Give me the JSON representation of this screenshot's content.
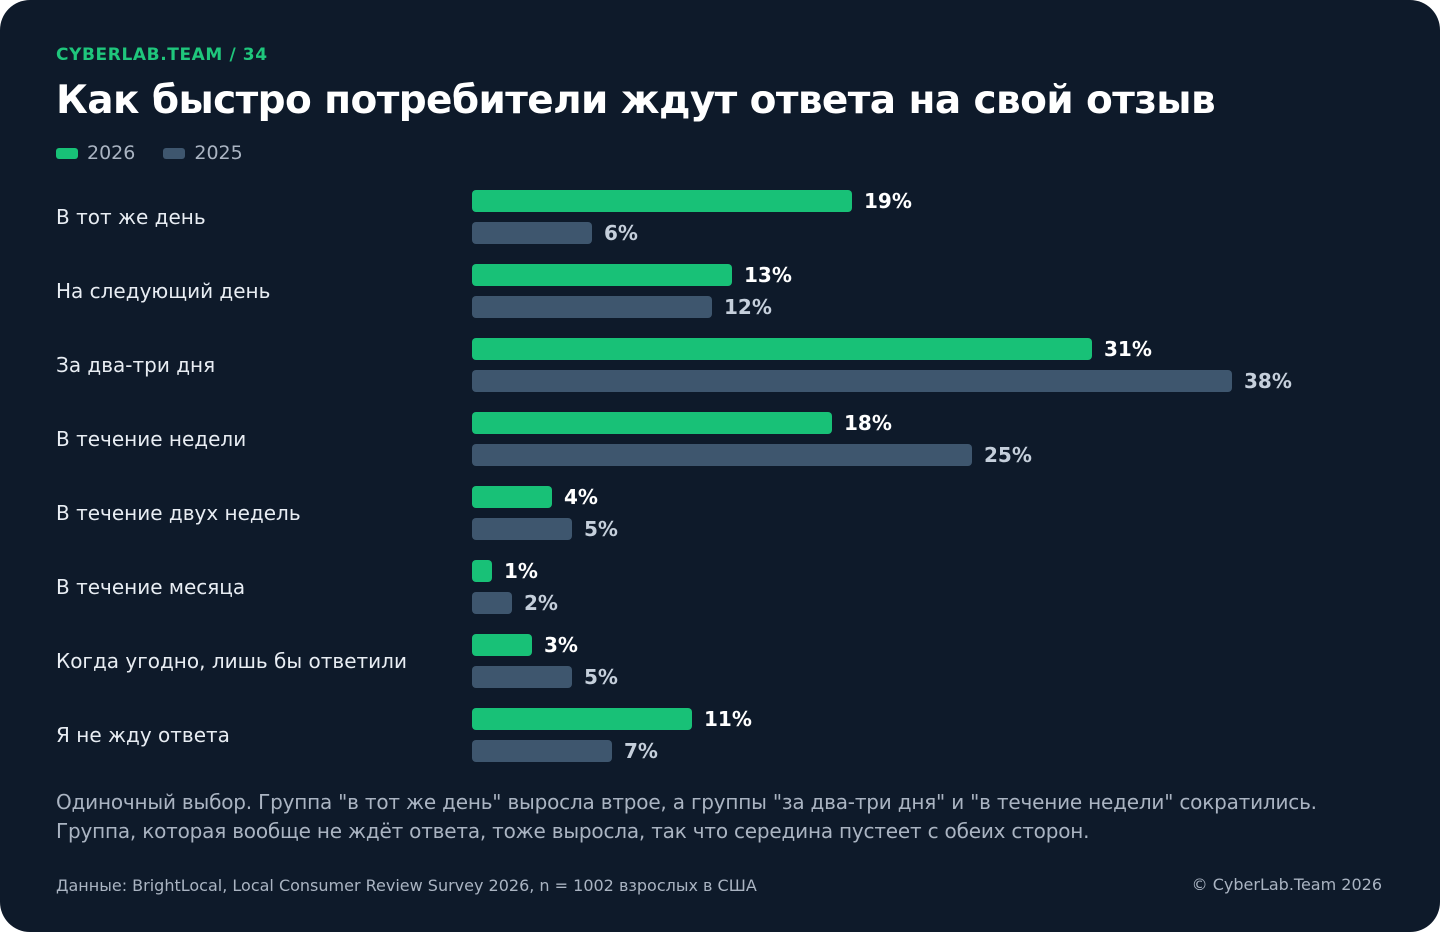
{
  "header": {
    "kicker": "CYBERLAB.TEAM / 34",
    "title": "Как быстро потребители ждут ответа на свой отзыв"
  },
  "colors": {
    "background": "#0e1a2a",
    "series_2026": "#18c177",
    "series_2025": "#3e566e",
    "label_2026": "#ffffff",
    "label_2025": "#c5cfdb"
  },
  "chart_data": {
    "type": "bar",
    "orientation": "horizontal",
    "unit": "%",
    "categories": [
      "В тот же день",
      "На следующий день",
      "За два-три дня",
      "В течение недели",
      "В течение двух недель",
      "В течение месяца",
      "Когда угодно, лишь бы ответили",
      "Я не жду ответа"
    ],
    "series": [
      {
        "name": "2026",
        "values": [
          19,
          13,
          31,
          18,
          4,
          1,
          3,
          11
        ]
      },
      {
        "name": "2025",
        "values": [
          6,
          12,
          38,
          25,
          5,
          2,
          5,
          7
        ]
      }
    ],
    "legend_position": "top-left",
    "grid": false
  },
  "footer": {
    "note": "Одиночный выбор. Группа \"в тот же день\" выросла втрое, а группы \"за два-три дня\" и \"в течение недели\" сократились. Группа, которая вообще не ждёт ответа, тоже выросла, так что середина пустеет с обеих сторон.",
    "source": "Данные: BrightLocal, Local Consumer Review Survey 2026, n = 1002 взрослых в США",
    "copyright": "© CyberLab.Team  2026"
  }
}
